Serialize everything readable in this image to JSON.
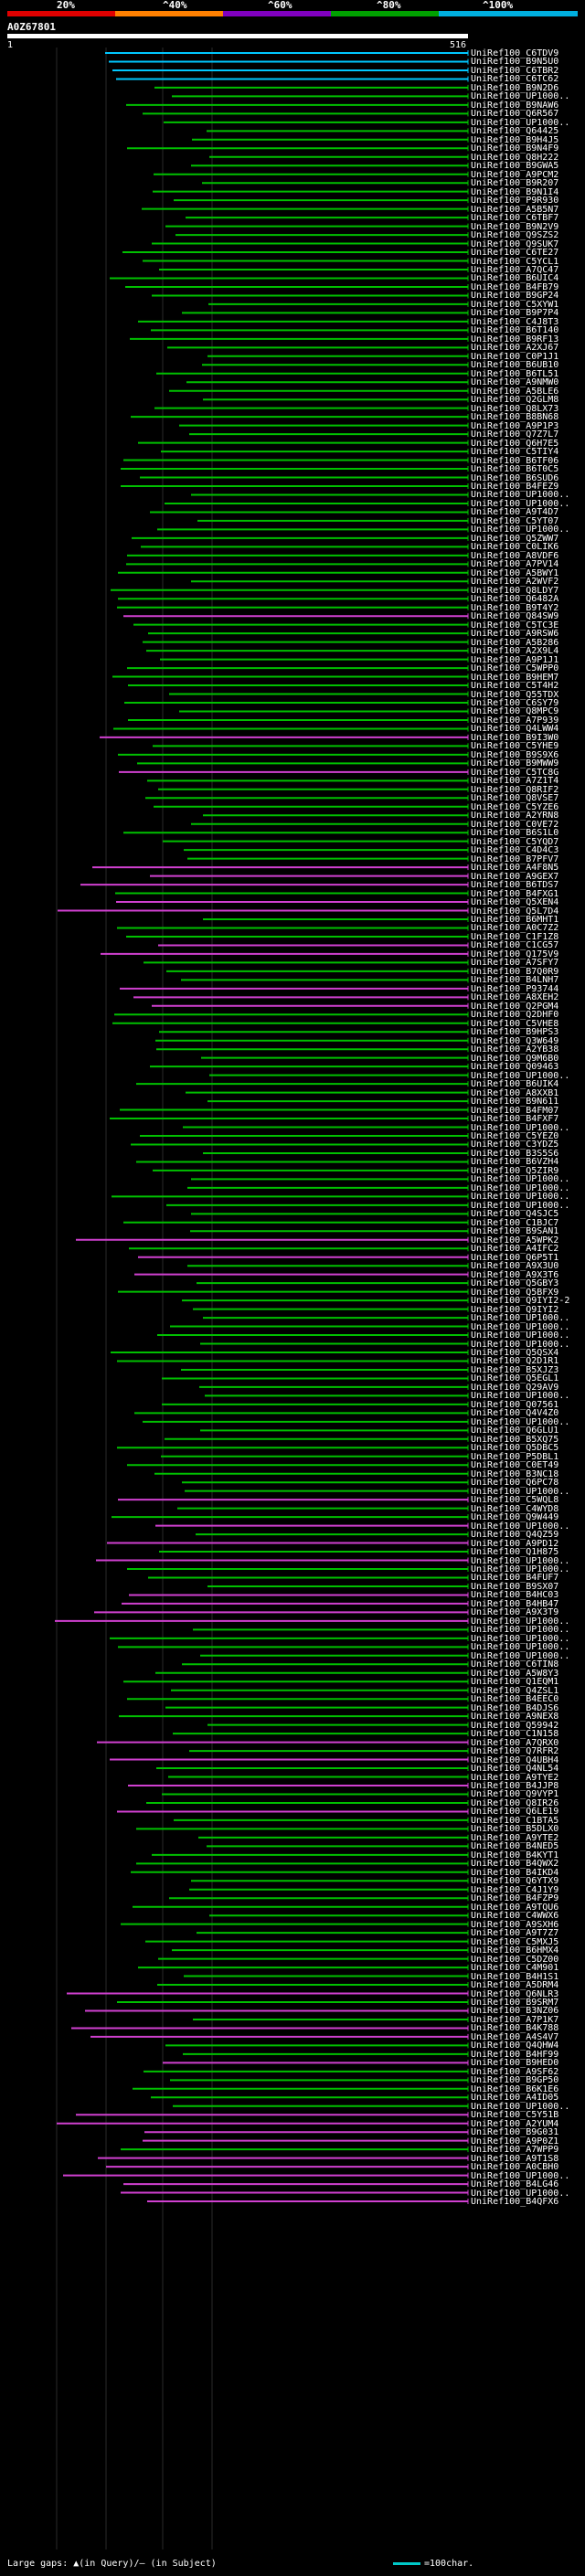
{
  "scale": {
    "labels": [
      "20%",
      "^40%",
      "^60%",
      "^80%",
      "^100%"
    ],
    "colors": [
      "#e00000",
      "#ff8000",
      "#8000c0",
      "#00a000",
      "#00b0e0"
    ]
  },
  "query": {
    "name": "A0Z67801",
    "start": "1",
    "end": "516"
  },
  "colors": {
    "cyan": "#00c8ff",
    "green": "#00c000",
    "magenta": "#d040d0",
    "dark_connector": "#005000",
    "background": "#000000"
  },
  "hits": [
    "UniRef100_C6TDV9",
    "UniRef100_B9N5U0",
    "UniRef100_C6TBR2",
    "UniRef100_C6TC62",
    "UniRef100_B9N2D6",
    "UniRef100_UP1000..",
    "UniRef100_B9NAW6",
    "UniRef100_Q6R567",
    "UniRef100_UP1000..",
    "UniRef100_Q64425",
    "UniRef100_B9H4J5",
    "UniRef100_B9N4F9",
    "UniRef100_Q8H222",
    "UniRef100_B9GWA5",
    "UniRef100_A9PCM2",
    "UniRef100_B9R207",
    "UniRef100_B9N1I4",
    "UniRef100_P9R930",
    "UniRef100_A5B5N7",
    "UniRef100_C6TBF7",
    "UniRef100_B9N2V9",
    "UniRef100_Q9SZS2",
    "UniRef100_Q9SUK7",
    "UniRef100_C6TE27",
    "UniRef100_C5YCL1",
    "UniRef100_A7QC47",
    "UniRef100_B6UIC4",
    "UniRef100_B4FB79",
    "UniRef100_B9GP24",
    "UniRef100_C5XYW1",
    "UniRef100_B9P7P4",
    "UniRef100_C4J8T3",
    "UniRef100_B6T140",
    "UniRef100_B9RF13",
    "UniRef100_A2XJ67",
    "UniRef100_C0P1J1",
    "UniRef100_B6UB10",
    "UniRef100_B6TL51",
    "UniRef100_A9NMW0",
    "UniRef100_A5BLE6",
    "UniRef100_Q2GLM8",
    "UniRef100_Q8LX73",
    "UniRef100_B8BN68",
    "UniRef100_A9P1P3",
    "UniRef100_Q7Z7L7",
    "UniRef100_Q6H7E5",
    "UniRef100_C5TIY4",
    "UniRef100_B6TF06",
    "UniRef100_B6T0C5",
    "UniRef100_B6SUD6",
    "UniRef100_B4FEZ9",
    "UniRef100_UP1000..",
    "UniRef100_UP1000..",
    "UniRef100_A9T4D7",
    "UniRef100_C5YT07",
    "UniRef100_UP1000..",
    "UniRef100_Q5ZWW7",
    "UniRef100_C0LIK6",
    "UniRef100_A8VDF6",
    "UniRef100_A7PV14",
    "UniRef100_A5BWY1",
    "UniRef100_A2WVF2",
    "UniRef100_Q8LDY7",
    "UniRef100_Q6482A",
    "UniRef100_B9T4Y2",
    "UniRef100_Q84SW9",
    "UniRef100_C5TC3E",
    "UniRef100_A9RSW6",
    "UniRef100_A5B286",
    "UniRef100_A2X9L4",
    "UniRef100_A9P1J1",
    "UniRef100_C5WPP0",
    "UniRef100_B9HEM7",
    "UniRef100_C5T4H2",
    "UniRef100_Q55TDX",
    "UniRef100_C6SY79",
    "UniRef100_Q8MPC9",
    "UniRef100_A7P939",
    "UniRef100_Q4LWW4",
    "UniRef100_B9I3W0",
    "UniRef100_C5YHE9",
    "UniRef100_B9S9X6",
    "UniRef100_B9MWW9",
    "UniRef100_C5TC8G",
    "UniRef100_A7Z1T4",
    "UniRef100_Q8RIF2",
    "UniRef100_Q8VSE7",
    "UniRef100_C5YZE6",
    "UniRef100_A2YRN8",
    "UniRef100_C0VE72",
    "UniRef100_B6S1L0",
    "UniRef100_C5YQD7",
    "UniRef100_C4D4C3",
    "UniRef100_B7PFV7",
    "UniRef100_A4F8N5",
    "UniRef100_A9GEX7",
    "UniRef100_B6TDS7",
    "UniRef100_B4FXG1",
    "UniRef100_Q5XEN4",
    "UniRef100_Q5L7D4",
    "UniRef100_B6MHT1",
    "UniRef100_A0C7Z2",
    "UniRef100_C1F1Z8",
    "UniRef100_C1CG57",
    "UniRef100_Q175V9",
    "UniRef100_A7SFY7",
    "UniRef100_B7Q0R9",
    "UniRef100_B4LNH7",
    "UniRef100_P93744",
    "UniRef100_A8XEH2",
    "UniRef100_Q2PGM4",
    "UniRef100_Q2DHF0",
    "UniRef100_C5VHE8",
    "UniRef100_B9HPS3",
    "UniRef100_Q3W649",
    "UniRef100_A2YB38",
    "UniRef100_Q9M6B0",
    "UniRef100_Q09463",
    "UniRef100_UP1000..",
    "UniRef100_B6UIK4",
    "UniRef100_A8XXB1",
    "UniRef100_B9N611",
    "UniRef100_B4FM07",
    "UniRef100_B4FXF7",
    "UniRef100_UP1000..",
    "UniRef100_C5YEZ0",
    "UniRef100_C3YDZ5",
    "UniRef100_B3S5S6",
    "UniRef100_B6VZH4",
    "UniRef100_Q5ZIR9",
    "UniRef100_UP1000..",
    "UniRef100_UP1000..",
    "UniRef100_UP1000..",
    "UniRef100_UP1000..",
    "UniRef100_Q4SJC5",
    "UniRef100_C1BJC7",
    "UniRef100_B9SAN1",
    "UniRef100_A5WPK2",
    "UniRef100_A4IFC2",
    "UniRef100_Q6P5T1",
    "UniRef100_A9X3U0",
    "UniRef100_A9X3T6",
    "UniRef100_Q5GBY3",
    "UniRef100_Q5BFX9",
    "UniRef100_Q9IYI2-2",
    "UniRef100_Q9IYI2",
    "UniRef100_UP1000..",
    "UniRef100_UP1000..",
    "UniRef100_UP1000..",
    "UniRef100_UP1000..",
    "UniRef100_Q5QSX4",
    "UniRef100_Q2D1R1",
    "UniRef100_B5XJZ3",
    "UniRef100_Q5EGL1",
    "UniRef100_Q29AV9",
    "UniRef100_UP1000..",
    "UniRef100_Q07561",
    "UniRef100_Q4V4Z0",
    "UniRef100_UP1000..",
    "UniRef100_Q6GLU1",
    "UniRef100_B5XQ75",
    "UniRef100_Q5DBC5",
    "UniRef100_P5DBL1",
    "UniRef100_C0ET49",
    "UniRef100_B3NC18",
    "UniRef100_Q6PC78",
    "UniRef100_UP1000..",
    "UniRef100_C5WQL8",
    "UniRef100_C4WYD8",
    "UniRef100_Q9W449",
    "UniRef100_UP1000..",
    "UniRef100_Q4QZ59",
    "UniRef100_A9PD12",
    "UniRef100_Q1H875",
    "UniRef100_UP1000..",
    "UniRef100_UP1000..",
    "UniRef100_B4FUF7",
    "UniRef100_B9SX07",
    "UniRef100_B4HC03",
    "UniRef100_B4HB47",
    "UniRef100_A9X3T9",
    "UniRef100_UP1000..",
    "UniRef100_UP1000..",
    "UniRef100_UP1000..",
    "UniRef100_UP1000..",
    "UniRef100_UP1000..",
    "UniRef100_C6TIN8",
    "UniRef100_A5W8Y3",
    "UniRef100_Q1EQM1",
    "UniRef100_Q4ZSL1",
    "UniRef100_B4EEC0",
    "UniRef100_B4DJS6",
    "UniRef100_A9NEX8",
    "UniRef100_Q59942",
    "UniRef100_C1N158",
    "UniRef100_A7QRX0",
    "UniRef100_Q7RFR2",
    "UniRef100_Q4UBH4",
    "UniRef100_Q4NL54",
    "UniRef100_A9TYE2",
    "UniRef100_B4JJP8",
    "UniRef100_Q9VYP1",
    "UniRef100_Q8IR26",
    "UniRef100_Q6LE19",
    "UniRef100_C1BTA5",
    "UniRef100_B5DLX0",
    "UniRef100_A9YTE2",
    "UniRef100_B4NED5",
    "UniRef100_B4KYT1",
    "UniRef100_B4QWX2",
    "UniRef100_B4IKD4",
    "UniRef100_Q6YTX9",
    "UniRef100_C4J1Y9",
    "UniRef100_B4FZP9",
    "UniRef100_A9TQU6",
    "UniRef100_C4WWX6",
    "UniRef100_A9SXH6",
    "UniRef100_A9T7Z7",
    "UniRef100_C5MXJ5",
    "UniRef100_B6HMX4",
    "UniRef100_C5DZ00",
    "UniRef100_C4M901",
    "UniRef100_B4H1S1",
    "UniRef100_A5DRM4",
    "UniRef100_Q6NLR3",
    "UniRef100_B9SRM7",
    "UniRef100_B3NZ06",
    "UniRef100_A7P1K7",
    "UniRef100_B4K788",
    "UniRef100_A4S4V7",
    "UniRef100_Q4QHW4",
    "UniRef100_B4HF99",
    "UniRef100_B9HED0",
    "UniRef100_A9SF62",
    "UniRef100_B9GP50",
    "UniRef100_B6K1E6",
    "UniRef100_A4ID05",
    "UniRef100_UP1000..",
    "UniRef100_C5Y51B",
    "UniRef100_A2YUM4",
    "UniRef100_B9G031",
    "UniRef100_A9P0Z1",
    "UniRef100_A7WPP9",
    "UniRef100_A9T1S8",
    "UniRef100_A0CBH0",
    "UniRef100_UP1000..",
    "UniRef100_B4LG46",
    "UniRef100_UP1000..",
    "UniRef100_B4QFX6"
  ],
  "footer": {
    "text": "Large gaps: ▲(in Query)/— (in Subject)",
    "legend": "=100char."
  }
}
